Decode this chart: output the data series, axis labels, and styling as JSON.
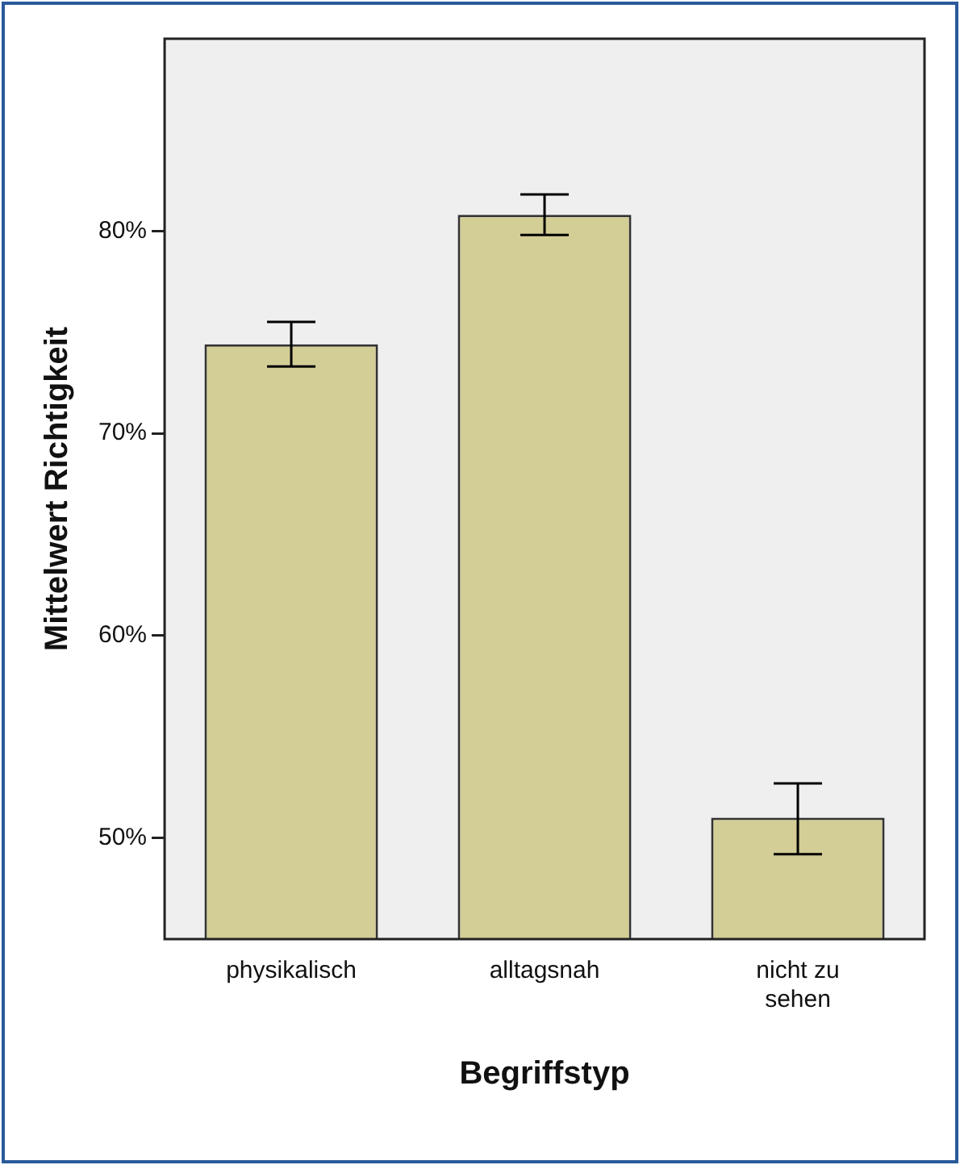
{
  "chart_data": {
    "type": "bar",
    "xlabel": "Begriffstyp",
    "ylabel": "Mittelwert Richtigkeit",
    "categories": [
      "physikalisch",
      "alltagsnah",
      "nicht zu sehen"
    ],
    "values": [
      74.4,
      80.8,
      51.0
    ],
    "errors": [
      [
        73.3,
        75.5
      ],
      [
        79.8,
        81.8
      ],
      [
        49.2,
        52.7
      ]
    ],
    "color": "#d3cd96",
    "ylim": [
      45,
      89.5
    ],
    "yticks": [
      {
        "value": 50,
        "label": "50%"
      },
      {
        "value": 60,
        "label": "60%"
      },
      {
        "value": 70,
        "label": "70%"
      },
      {
        "value": 80,
        "label": "80%"
      }
    ],
    "grid": false,
    "legend": false
  }
}
